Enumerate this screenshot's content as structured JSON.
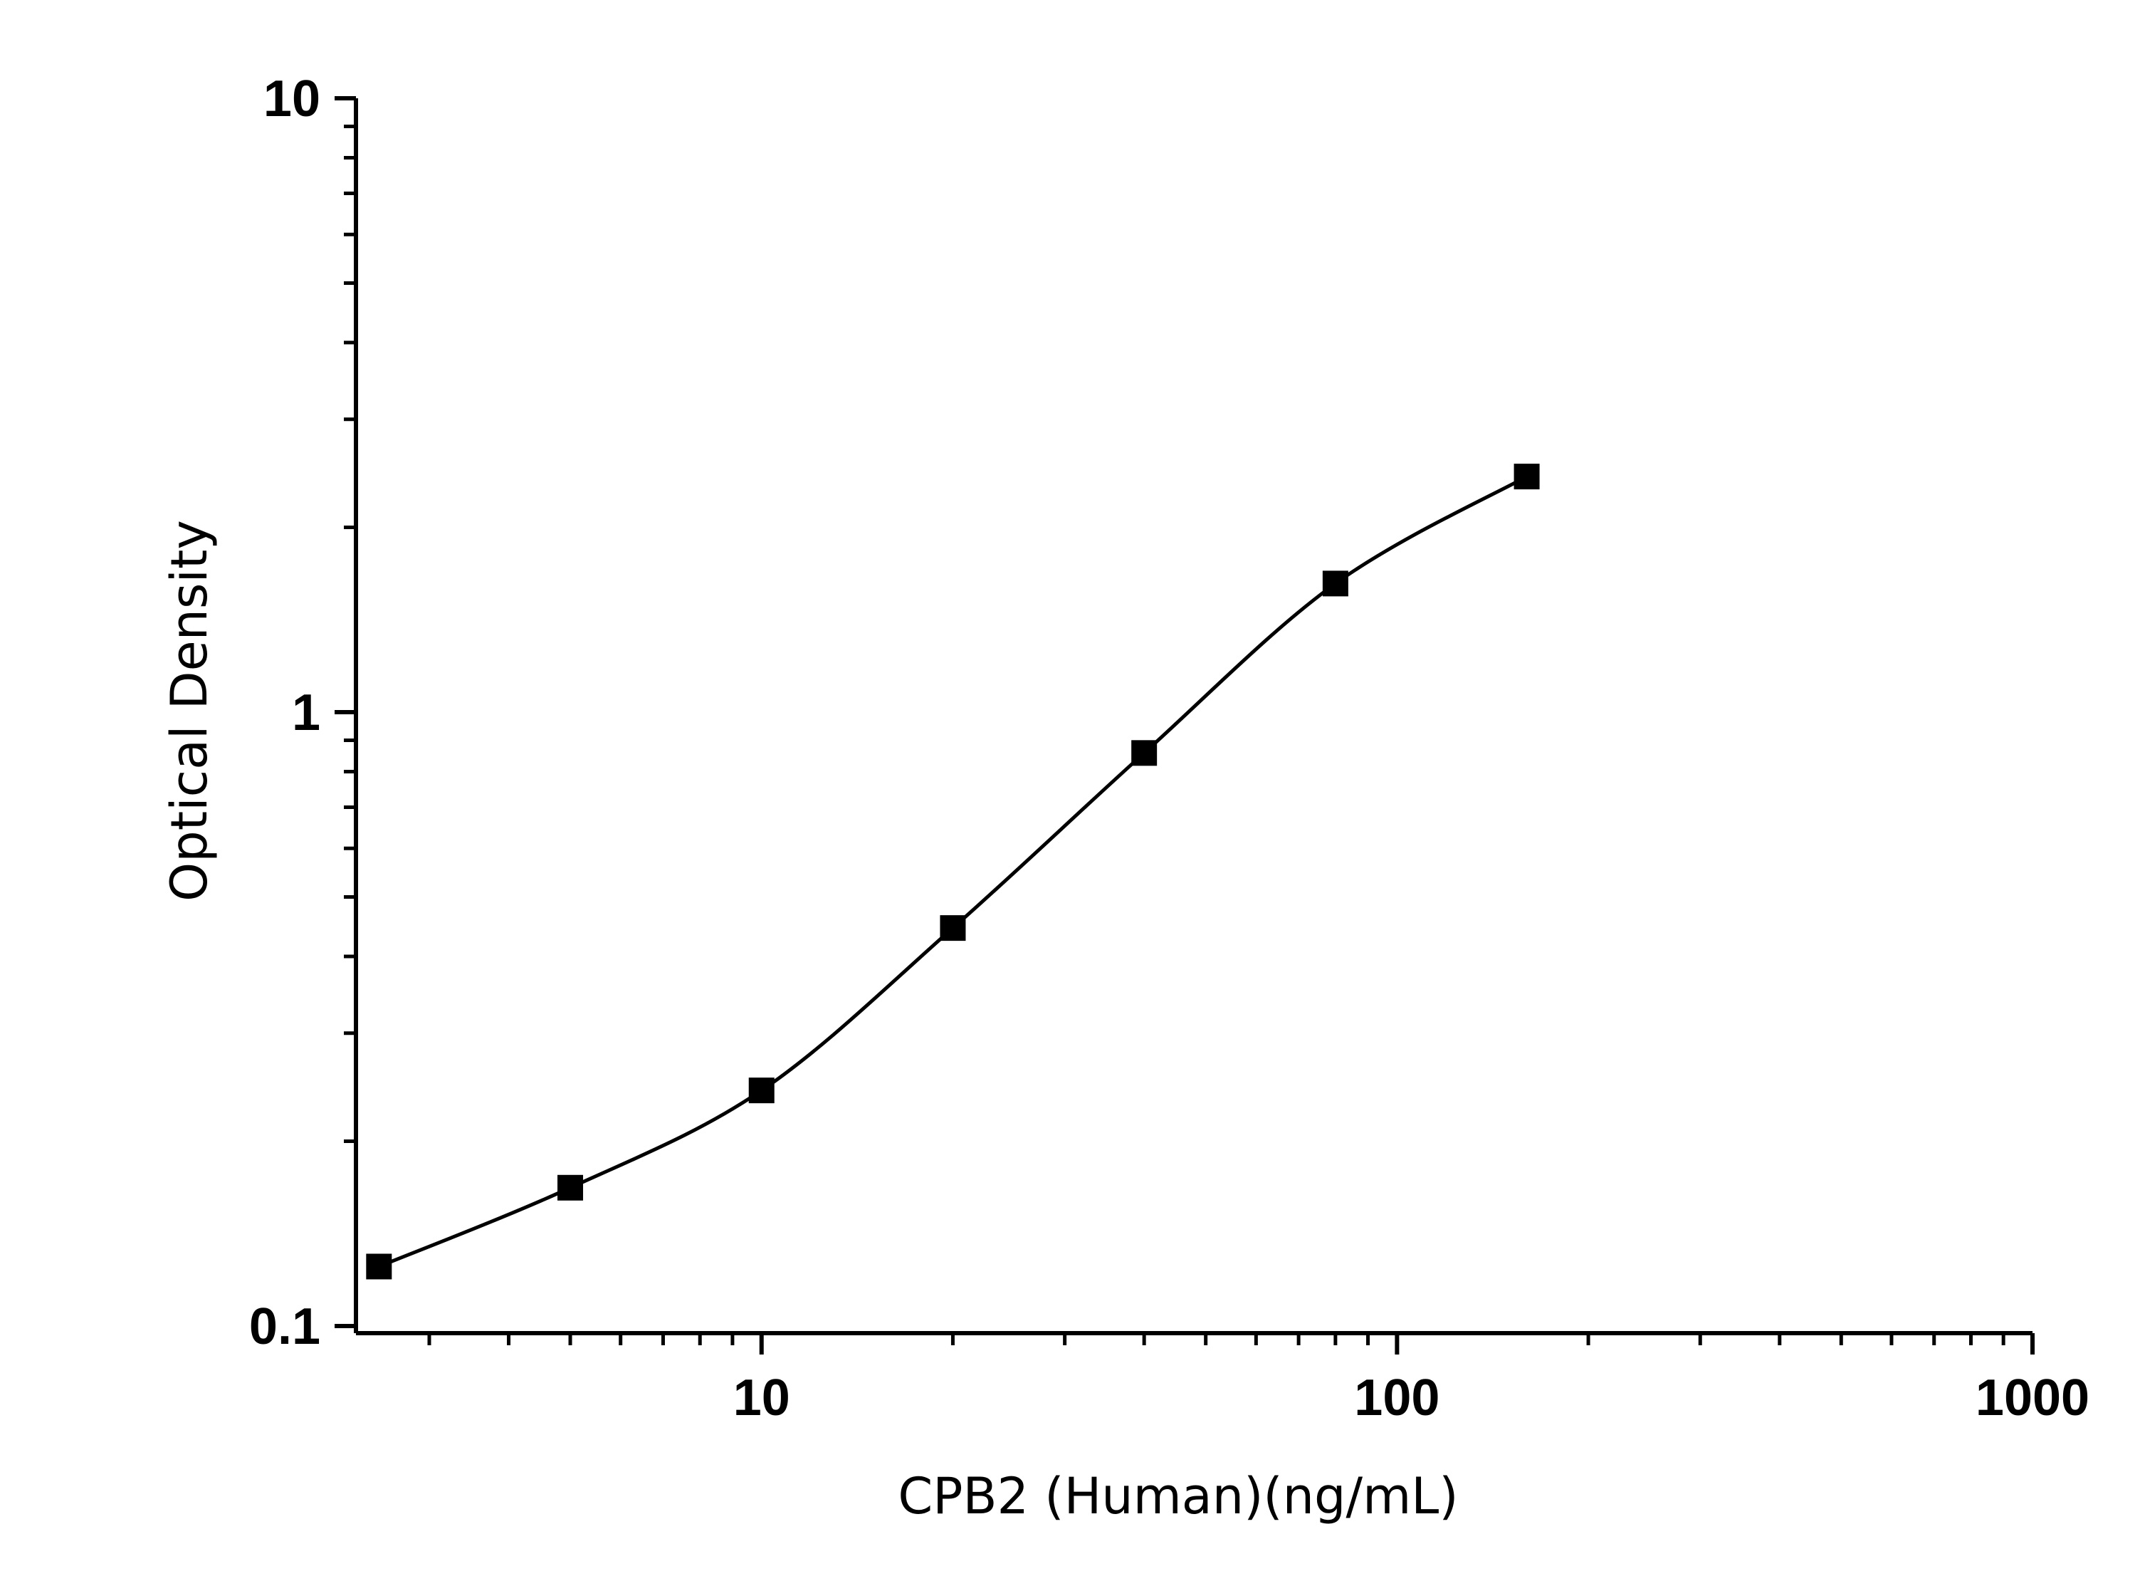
{
  "chart_data": {
    "type": "scatter",
    "xlabel": "CPB2 (Human)(ng/mL)",
    "ylabel": "Optical Density",
    "x_scale": "log",
    "y_scale": "log",
    "xlim": [
      2.3,
      1000
    ],
    "ylim": [
      0.1,
      10
    ],
    "x_ticks": [
      10,
      100,
      1000
    ],
    "x_tick_labels": [
      "10",
      "100",
      "1000"
    ],
    "y_ticks": [
      0.1,
      1,
      10
    ],
    "y_tick_labels": [
      "0.1",
      "1",
      "10"
    ],
    "grid": false,
    "legend": "none",
    "series": [
      {
        "marker": "square",
        "color": "#000000",
        "fit": "sigmoidal",
        "x": [
          2.5,
          5,
          10,
          20,
          40,
          80,
          160
        ],
        "y": [
          0.125,
          0.168,
          0.242,
          0.445,
          0.858,
          1.62,
          2.42
        ]
      }
    ]
  }
}
